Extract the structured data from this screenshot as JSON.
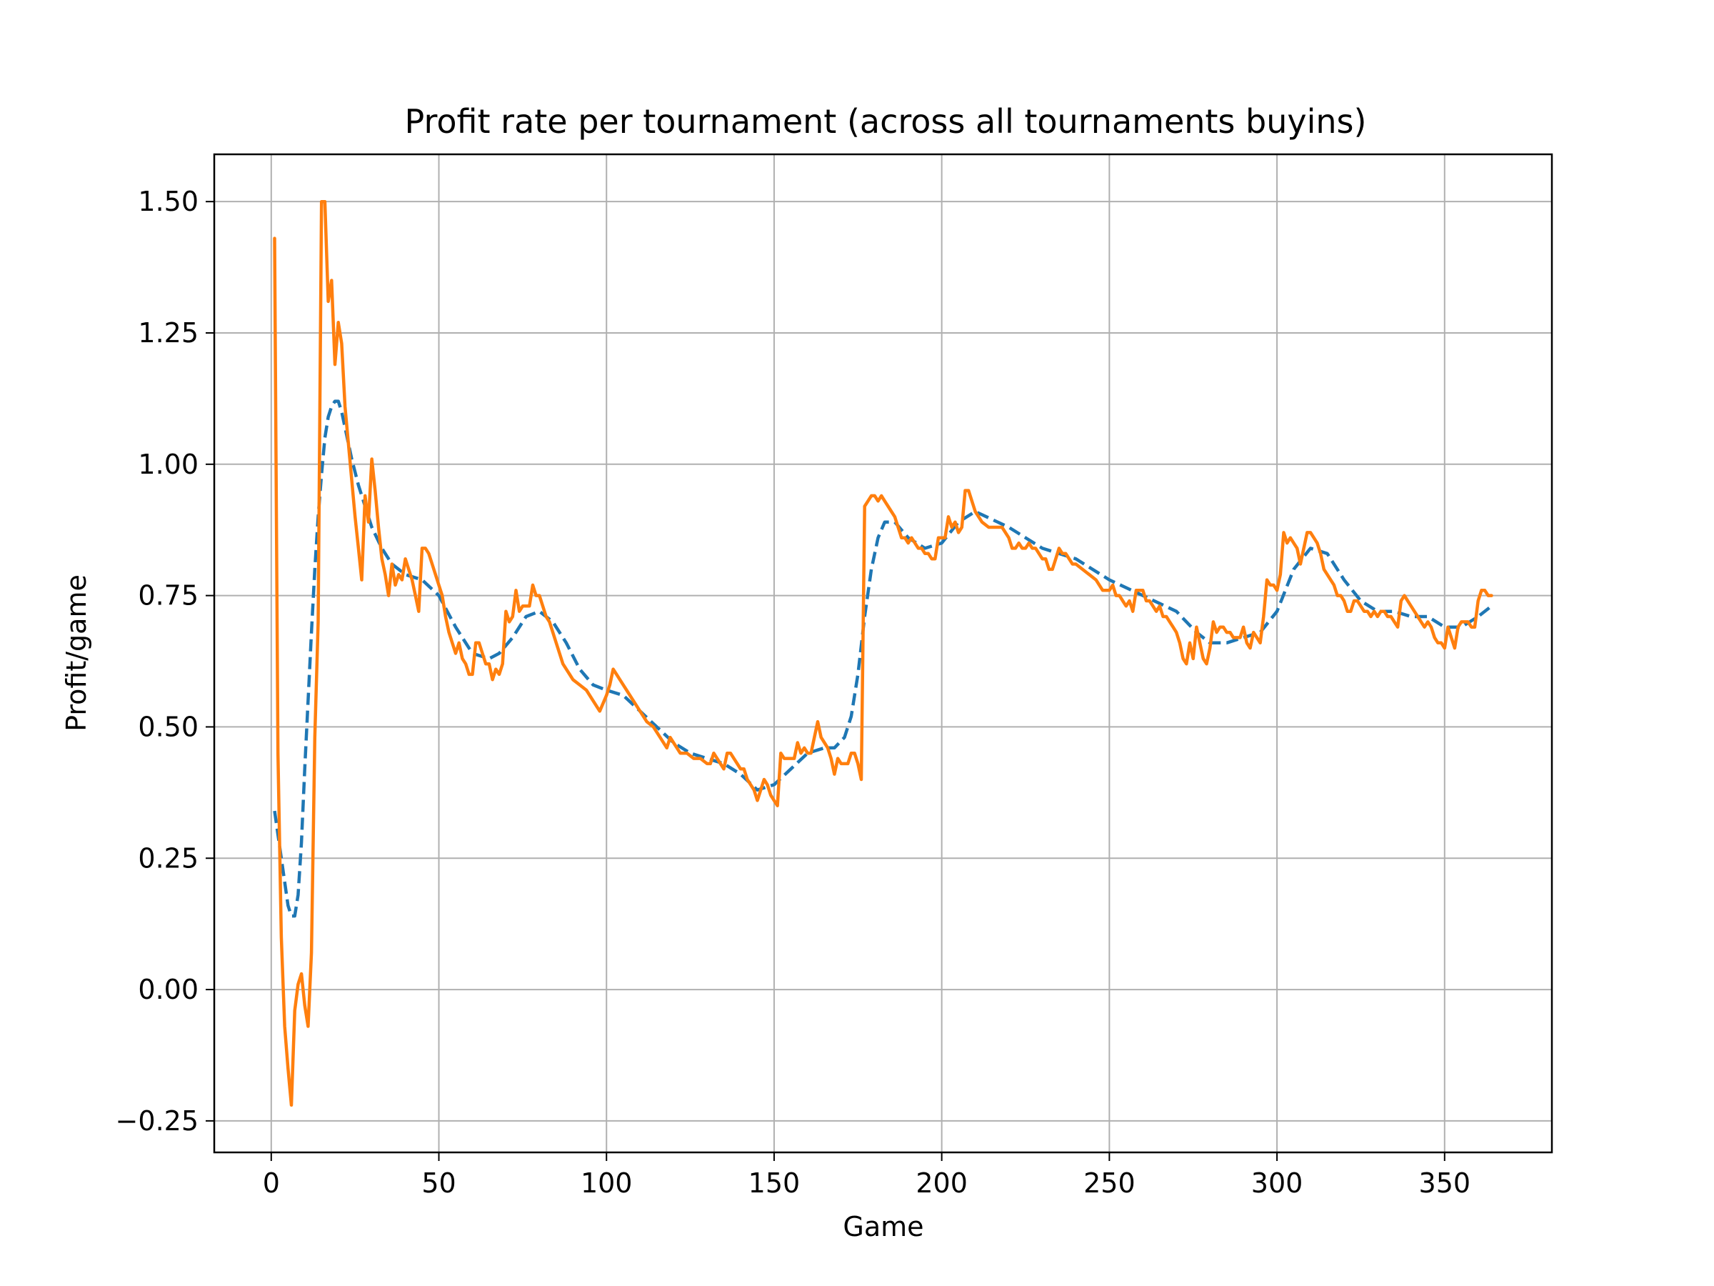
{
  "chart_data": {
    "type": "line",
    "title": "Profit rate per tournament (across all tournaments buyins)",
    "xlabel": "Game",
    "ylabel": "Profit/game",
    "xlim": [
      -17,
      382
    ],
    "ylim": [
      -0.31,
      1.59
    ],
    "grid": true,
    "legend": "none",
    "x_ticks": [
      0,
      50,
      100,
      150,
      200,
      250,
      300,
      350
    ],
    "x_tick_labels": [
      "0",
      "50",
      "100",
      "150",
      "200",
      "250",
      "300",
      "350"
    ],
    "y_ticks": [
      -0.25,
      0,
      0.25,
      0.5,
      0.75,
      1.0,
      1.25,
      1.5
    ],
    "y_tick_labels": [
      "−0.25",
      "0.00",
      "0.25",
      "0.50",
      "0.75",
      "1.00",
      "1.25",
      "1.50"
    ],
    "series": [
      {
        "color": "#1f77b4",
        "style": "dashed",
        "x": [
          1,
          3,
          5,
          6,
          7,
          8,
          9,
          10,
          11,
          12,
          13,
          14,
          15,
          16,
          17,
          18,
          19,
          20,
          21,
          22,
          24,
          26,
          28,
          30,
          33,
          36,
          40,
          45,
          50,
          55,
          60,
          65,
          68,
          72,
          76,
          80,
          84,
          88,
          92,
          96,
          100,
          105,
          110,
          115,
          120,
          125,
          130,
          135,
          140,
          145,
          150,
          155,
          160,
          165,
          168,
          171,
          173,
          175,
          177,
          179,
          181,
          183,
          186,
          190,
          195,
          200,
          205,
          210,
          220,
          230,
          240,
          250,
          260,
          270,
          276,
          280,
          285,
          290,
          295,
          300,
          305,
          310,
          315,
          320,
          325,
          330,
          335,
          340,
          345,
          350,
          355,
          360,
          364
        ],
        "y": [
          0.34,
          0.25,
          0.16,
          0.14,
          0.14,
          0.18,
          0.28,
          0.42,
          0.55,
          0.68,
          0.8,
          0.9,
          0.98,
          1.05,
          1.09,
          1.11,
          1.12,
          1.12,
          1.1,
          1.07,
          1.01,
          0.96,
          0.92,
          0.88,
          0.84,
          0.81,
          0.79,
          0.78,
          0.75,
          0.69,
          0.64,
          0.63,
          0.64,
          0.67,
          0.71,
          0.72,
          0.7,
          0.66,
          0.61,
          0.58,
          0.57,
          0.56,
          0.53,
          0.5,
          0.47,
          0.45,
          0.44,
          0.43,
          0.41,
          0.38,
          0.39,
          0.42,
          0.45,
          0.46,
          0.46,
          0.48,
          0.52,
          0.6,
          0.71,
          0.8,
          0.86,
          0.89,
          0.89,
          0.86,
          0.84,
          0.85,
          0.89,
          0.91,
          0.88,
          0.84,
          0.82,
          0.78,
          0.75,
          0.72,
          0.68,
          0.66,
          0.66,
          0.67,
          0.68,
          0.72,
          0.8,
          0.84,
          0.83,
          0.78,
          0.74,
          0.72,
          0.72,
          0.71,
          0.71,
          0.69,
          0.69,
          0.71,
          0.73
        ]
      },
      {
        "color": "#ff7f0e",
        "style": "solid",
        "x": [
          1,
          2,
          3,
          4,
          5,
          6,
          7,
          8,
          9,
          10,
          11,
          12,
          13,
          14,
          15,
          16,
          17,
          18,
          19,
          20,
          21,
          22,
          23,
          24,
          25,
          26,
          27,
          28,
          29,
          30,
          31,
          32,
          33,
          34,
          35,
          36,
          37,
          38,
          39,
          40,
          41,
          42,
          43,
          44,
          45,
          46,
          47,
          48,
          49,
          50,
          51,
          52,
          53,
          54,
          55,
          56,
          57,
          58,
          59,
          60,
          61,
          62,
          63,
          64,
          65,
          66,
          67,
          68,
          69,
          70,
          71,
          72,
          73,
          74,
          75,
          76,
          77,
          78,
          79,
          80,
          81,
          82,
          83,
          84,
          85,
          86,
          87,
          88,
          89,
          90,
          92,
          94,
          96,
          98,
          100,
          101,
          102,
          103,
          104,
          106,
          108,
          110,
          112,
          114,
          116,
          118,
          119,
          120,
          121,
          122,
          124,
          126,
          128,
          130,
          131,
          132,
          133,
          134,
          135,
          136,
          137,
          138,
          139,
          140,
          141,
          142,
          143,
          144,
          145,
          146,
          147,
          148,
          149,
          150,
          151,
          152,
          153,
          154,
          155,
          156,
          157,
          158,
          159,
          160,
          161,
          162,
          163,
          164,
          165,
          166,
          167,
          168,
          169,
          170,
          171,
          172,
          173,
          174,
          175,
          176,
          177,
          178,
          179,
          180,
          181,
          182,
          183,
          184,
          185,
          186,
          187,
          188,
          189,
          190,
          191,
          192,
          193,
          194,
          195,
          196,
          197,
          198,
          199,
          200,
          201,
          202,
          203,
          204,
          205,
          206,
          207,
          208,
          209,
          210,
          212,
          214,
          216,
          218,
          220,
          221,
          222,
          223,
          224,
          225,
          226,
          227,
          228,
          229,
          230,
          231,
          232,
          233,
          234,
          235,
          236,
          237,
          238,
          239,
          240,
          242,
          244,
          246,
          248,
          250,
          251,
          252,
          253,
          254,
          255,
          256,
          257,
          258,
          259,
          260,
          261,
          262,
          263,
          264,
          265,
          266,
          267,
          268,
          269,
          270,
          271,
          272,
          273,
          274,
          275,
          276,
          277,
          278,
          279,
          280,
          281,
          282,
          283,
          284,
          285,
          286,
          287,
          288,
          289,
          290,
          291,
          292,
          293,
          294,
          295,
          296,
          297,
          298,
          299,
          300,
          301,
          302,
          303,
          304,
          305,
          306,
          307,
          308,
          309,
          310,
          311,
          312,
          313,
          314,
          315,
          316,
          317,
          318,
          319,
          320,
          321,
          322,
          323,
          324,
          325,
          326,
          327,
          328,
          329,
          330,
          331,
          332,
          333,
          334,
          335,
          336,
          337,
          338,
          339,
          340,
          341,
          342,
          343,
          344,
          345,
          346,
          347,
          348,
          349,
          350,
          351,
          352,
          353,
          354,
          355,
          356,
          357,
          358,
          359,
          360,
          361,
          362,
          363,
          364
        ],
        "y": [
          1.43,
          0.45,
          0.1,
          -0.07,
          -0.15,
          -0.22,
          -0.04,
          0.01,
          0.03,
          -0.03,
          -0.07,
          0.07,
          0.48,
          0.7,
          1.5,
          1.5,
          1.31,
          1.35,
          1.19,
          1.27,
          1.23,
          1.11,
          1.04,
          0.97,
          0.9,
          0.84,
          0.78,
          0.94,
          0.89,
          1.01,
          0.95,
          0.88,
          0.82,
          0.79,
          0.75,
          0.81,
          0.77,
          0.79,
          0.78,
          0.82,
          0.8,
          0.78,
          0.75,
          0.72,
          0.84,
          0.84,
          0.83,
          0.81,
          0.79,
          0.77,
          0.75,
          0.71,
          0.68,
          0.66,
          0.64,
          0.66,
          0.63,
          0.62,
          0.6,
          0.6,
          0.66,
          0.66,
          0.64,
          0.62,
          0.62,
          0.59,
          0.61,
          0.6,
          0.62,
          0.72,
          0.7,
          0.71,
          0.76,
          0.72,
          0.73,
          0.73,
          0.73,
          0.77,
          0.75,
          0.75,
          0.73,
          0.71,
          0.7,
          0.68,
          0.66,
          0.64,
          0.62,
          0.61,
          0.6,
          0.59,
          0.58,
          0.57,
          0.55,
          0.53,
          0.56,
          0.58,
          0.61,
          0.6,
          0.59,
          0.57,
          0.55,
          0.53,
          0.51,
          0.5,
          0.48,
          0.46,
          0.48,
          0.47,
          0.46,
          0.45,
          0.45,
          0.44,
          0.44,
          0.43,
          0.43,
          0.45,
          0.44,
          0.43,
          0.42,
          0.45,
          0.45,
          0.44,
          0.43,
          0.42,
          0.42,
          0.4,
          0.39,
          0.38,
          0.36,
          0.38,
          0.4,
          0.39,
          0.37,
          0.36,
          0.35,
          0.45,
          0.44,
          0.44,
          0.44,
          0.44,
          0.47,
          0.45,
          0.46,
          0.45,
          0.45,
          0.48,
          0.51,
          0.48,
          0.47,
          0.46,
          0.44,
          0.41,
          0.44,
          0.43,
          0.43,
          0.43,
          0.45,
          0.45,
          0.43,
          0.4,
          0.92,
          0.93,
          0.94,
          0.94,
          0.93,
          0.94,
          0.93,
          0.92,
          0.91,
          0.9,
          0.88,
          0.86,
          0.86,
          0.85,
          0.86,
          0.85,
          0.84,
          0.84,
          0.83,
          0.83,
          0.82,
          0.82,
          0.86,
          0.86,
          0.86,
          0.9,
          0.88,
          0.89,
          0.87,
          0.88,
          0.95,
          0.95,
          0.93,
          0.91,
          0.89,
          0.88,
          0.88,
          0.88,
          0.86,
          0.84,
          0.84,
          0.85,
          0.84,
          0.84,
          0.85,
          0.84,
          0.84,
          0.83,
          0.82,
          0.82,
          0.8,
          0.8,
          0.82,
          0.84,
          0.83,
          0.83,
          0.82,
          0.81,
          0.81,
          0.8,
          0.79,
          0.78,
          0.76,
          0.76,
          0.77,
          0.75,
          0.75,
          0.74,
          0.73,
          0.74,
          0.72,
          0.76,
          0.76,
          0.76,
          0.74,
          0.74,
          0.73,
          0.72,
          0.73,
          0.71,
          0.71,
          0.7,
          0.69,
          0.68,
          0.66,
          0.63,
          0.62,
          0.66,
          0.63,
          0.69,
          0.66,
          0.63,
          0.62,
          0.65,
          0.7,
          0.68,
          0.69,
          0.69,
          0.68,
          0.68,
          0.67,
          0.67,
          0.67,
          0.69,
          0.66,
          0.65,
          0.68,
          0.67,
          0.66,
          0.71,
          0.78,
          0.77,
          0.77,
          0.76,
          0.79,
          0.87,
          0.85,
          0.86,
          0.85,
          0.84,
          0.81,
          0.84,
          0.87,
          0.87,
          0.86,
          0.85,
          0.83,
          0.8,
          0.79,
          0.78,
          0.77,
          0.75,
          0.75,
          0.74,
          0.72,
          0.72,
          0.74,
          0.74,
          0.73,
          0.72,
          0.72,
          0.71,
          0.72,
          0.71,
          0.72,
          0.72,
          0.71,
          0.71,
          0.7,
          0.69,
          0.74,
          0.75,
          0.74,
          0.73,
          0.72,
          0.71,
          0.7,
          0.69,
          0.7,
          0.69,
          0.67,
          0.66,
          0.66,
          0.65,
          0.69,
          0.67,
          0.65,
          0.69,
          0.7,
          0.7,
          0.7,
          0.69,
          0.69,
          0.74,
          0.76,
          0.76,
          0.75,
          0.75
        ]
      }
    ]
  }
}
